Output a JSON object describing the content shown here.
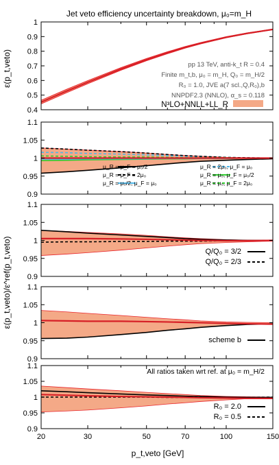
{
  "figure": {
    "title": "Jet veto efficiency uncertainty breakdown, μ₀=m_H",
    "xlabel": "p_t,veto [GeV]",
    "ylabel_top": "ε(p_t,veto)",
    "ylabel_ratio": "ε(p_t,veto)/ε^ref(p_t,veto)",
    "xticks": [
      "20",
      "30",
      "50",
      "70",
      "100",
      "150"
    ]
  },
  "colors": {
    "band_fill": "#f4a987",
    "band_edge": "#e8242a",
    "central": "#d61f26",
    "black": "#000000",
    "cyan": "#4fb7e8",
    "green": "#2ecc2e"
  },
  "chart_data": [
    {
      "type": "line",
      "panel": "efficiency",
      "ylim": [
        0.4,
        1.0
      ],
      "yticks": [
        "0.4",
        "0.5",
        "0.6",
        "0.7",
        "0.8",
        "0.9",
        "1"
      ],
      "annotations": [
        "pp 13 TeV, anti-k_t R = 0.4",
        "Finite m_t,b, μ₀ = m_H, Q₀ = m_H/2",
        "R₀ = 1.0, JVE a(7 scl.,Q,R₀),b",
        "NNPDF2.3 (NNLO), α_s = 0.118"
      ],
      "legend": [
        "N³LO+NNLL+LL_R"
      ],
      "x": [
        20,
        25,
        30,
        40,
        50,
        60,
        70,
        80,
        100,
        120,
        150
      ],
      "series": [
        {
          "name": "N³LO+NNLL+LL_R",
          "central": [
            0.452,
            0.528,
            0.588,
            0.678,
            0.742,
            0.789,
            0.826,
            0.854,
            0.895,
            0.922,
            0.949
          ],
          "lower": [
            0.44,
            0.517,
            0.578,
            0.67,
            0.735,
            0.783,
            0.821,
            0.85,
            0.892,
            0.919,
            0.947
          ],
          "upper": [
            0.464,
            0.54,
            0.599,
            0.687,
            0.75,
            0.796,
            0.832,
            0.859,
            0.899,
            0.925,
            0.951
          ]
        }
      ]
    },
    {
      "type": "line",
      "panel": "scale variations",
      "ylim": [
        0.9,
        1.1
      ],
      "yticks": [
        "0.9",
        "0.95",
        "1",
        "1.05",
        "1.1"
      ],
      "x": [
        20,
        25,
        30,
        40,
        50,
        60,
        70,
        80,
        100,
        120,
        150
      ],
      "band": {
        "lower": [
          0.958,
          0.962,
          0.966,
          0.973,
          0.979,
          0.984,
          0.988,
          0.991,
          0.994,
          0.996,
          0.998
        ],
        "upper": [
          1.028,
          1.025,
          1.022,
          1.018,
          1.014,
          1.01,
          1.007,
          1.005,
          1.002,
          1.001,
          1.0
        ]
      },
      "legend": [
        "μ_R = μ_F = μ₀/2",
        "μ_R = 2μ₀, μ_F = μ₀",
        "μ_R = μ_F = 2μ₀",
        "μ_R = μ₀, μ_F = μ₀/2",
        "μ_R = μ₀/2, μ_F = μ₀",
        "μ_R = μ₀, μ_F = 2μ₀"
      ],
      "series": [
        {
          "name": "μ_R = μ_F = μ₀/2",
          "color": "#000000",
          "dash": "solid",
          "values": [
            0.958,
            0.962,
            0.966,
            0.973,
            0.979,
            0.984,
            0.988,
            0.991,
            0.994,
            0.996,
            0.998
          ]
        },
        {
          "name": "μ_R = 2μ₀, μ_F = μ₀",
          "color": "#4fb7e8",
          "dash": "dashed",
          "values": [
            1.016,
            1.015,
            1.013,
            1.011,
            1.009,
            1.007,
            1.005,
            1.004,
            1.002,
            1.001,
            1.0
          ]
        },
        {
          "name": "μ_R = μ_F = 2μ₀",
          "color": "#000000",
          "dash": "dashed",
          "values": [
            1.028,
            1.025,
            1.022,
            1.018,
            1.014,
            1.01,
            1.007,
            1.005,
            1.002,
            1.001,
            1.0
          ]
        },
        {
          "name": "μ_R = μ₀, μ_F = μ₀/2",
          "color": "#2ecc2e",
          "dash": "solid",
          "values": [
            0.993,
            0.994,
            0.995,
            0.996,
            0.997,
            0.998,
            0.998,
            0.999,
            0.999,
            1.0,
            1.0
          ]
        },
        {
          "name": "μ_R = μ₀/2, μ_F = μ₀",
          "color": "#4fb7e8",
          "dash": "solid",
          "values": [
            0.997,
            0.997,
            0.998,
            0.998,
            0.998,
            0.999,
            0.999,
            0.999,
            0.999,
            1.0,
            1.0
          ]
        },
        {
          "name": "μ_R = μ₀, μ_F = 2μ₀",
          "color": "#2ecc2e",
          "dash": "dashed",
          "values": [
            1.006,
            1.005,
            1.004,
            1.003,
            1.003,
            1.002,
            1.001,
            1.001,
            1.001,
            1.0,
            1.0
          ]
        },
        {
          "name": "reference",
          "color": "#d61f26",
          "dash": "solid",
          "values": [
            1.0,
            1.0,
            1.0,
            1.0,
            1.0,
            1.0,
            1.0,
            1.0,
            1.0,
            1.0,
            1.0
          ]
        }
      ]
    },
    {
      "type": "line",
      "panel": "Q variation",
      "ylim": [
        0.9,
        1.1
      ],
      "yticks": [
        "0.9",
        "0.95",
        "1",
        "1.05",
        "1.1"
      ],
      "x": [
        20,
        25,
        30,
        40,
        50,
        60,
        70,
        80,
        100,
        120,
        150
      ],
      "band": {
        "lower": [
          0.958,
          0.962,
          0.966,
          0.973,
          0.979,
          0.984,
          0.988,
          0.991,
          0.994,
          0.996,
          0.998
        ],
        "upper": [
          1.028,
          1.025,
          1.022,
          1.018,
          1.014,
          1.01,
          1.007,
          1.005,
          1.002,
          1.001,
          1.0
        ]
      },
      "legend": [
        "Q/Q₀ = 3/2",
        "Q/Q₀ = 2/3"
      ],
      "series": [
        {
          "name": "Q/Q₀ = 3/2",
          "color": "#000000",
          "dash": "solid",
          "values": [
            1.028,
            1.024,
            1.02,
            1.015,
            1.011,
            1.008,
            1.005,
            1.003,
            1.001,
            1.0,
            1.0
          ]
        },
        {
          "name": "Q/Q₀ = 2/3",
          "color": "#000000",
          "dash": "dashed",
          "values": [
            0.995,
            0.996,
            0.996,
            0.997,
            0.997,
            0.998,
            0.998,
            0.998,
            0.999,
            0.999,
            1.0
          ]
        },
        {
          "name": "reference",
          "color": "#d61f26",
          "dash": "solid",
          "values": [
            1.005,
            1.005,
            1.005,
            1.004,
            1.003,
            1.002,
            1.001,
            1.0,
            0.999,
            0.999,
            1.0
          ]
        }
      ]
    },
    {
      "type": "line",
      "panel": "scheme",
      "ylim": [
        0.9,
        1.1
      ],
      "yticks": [
        "0.9",
        "0.95",
        "1",
        "1.05",
        "1.1"
      ],
      "x": [
        20,
        25,
        30,
        40,
        50,
        60,
        70,
        80,
        100,
        120,
        150
      ],
      "band": {
        "lower": [
          0.956,
          0.957,
          0.96,
          0.967,
          0.973,
          0.979,
          0.983,
          0.987,
          0.992,
          0.995,
          0.997
        ],
        "upper": [
          1.034,
          1.03,
          1.026,
          1.02,
          1.015,
          1.011,
          1.008,
          1.005,
          1.002,
          1.001,
          1.0
        ]
      },
      "legend": [
        "scheme b"
      ],
      "series": [
        {
          "name": "scheme b",
          "color": "#000000",
          "dash": "solid",
          "values": [
            0.956,
            0.957,
            0.96,
            0.967,
            0.973,
            0.979,
            0.983,
            0.987,
            0.992,
            0.995,
            0.997
          ]
        },
        {
          "name": "reference",
          "color": "#d61f26",
          "dash": "solid",
          "values": [
            1.006,
            1.005,
            1.004,
            1.004,
            1.003,
            1.002,
            1.001,
            1.0,
            0.998,
            0.997,
            0.996
          ]
        }
      ]
    },
    {
      "type": "line",
      "panel": "jet radius",
      "ylim": [
        0.9,
        1.1
      ],
      "yticks": [
        "0.9",
        "0.95",
        "1",
        "1.05",
        "1.1"
      ],
      "annotation": "All ratios taken wrt ref. at μ₀ = m_H/2",
      "x": [
        20,
        25,
        30,
        40,
        50,
        60,
        70,
        80,
        100,
        120,
        150
      ],
      "band": {
        "lower": [
          0.953,
          0.956,
          0.959,
          0.966,
          0.972,
          0.978,
          0.982,
          0.986,
          0.991,
          0.995,
          0.997
        ],
        "upper": [
          1.035,
          1.03,
          1.026,
          1.02,
          1.015,
          1.011,
          1.008,
          1.005,
          1.002,
          1.001,
          1.0
        ]
      },
      "legend": [
        "R₀ = 2.0",
        "R₀ = 0.5"
      ],
      "series": [
        {
          "name": "R₀ = 2.0",
          "color": "#000000",
          "dash": "solid",
          "values": [
            1.02,
            1.017,
            1.014,
            1.01,
            1.007,
            1.005,
            1.003,
            1.002,
            1.0,
            0.999,
            0.999
          ]
        },
        {
          "name": "R₀ = 0.5",
          "color": "#000000",
          "dash": "dashed",
          "values": [
            1.0,
            1.0,
            1.0,
            1.0,
            1.0,
            0.999,
            0.999,
            0.999,
            0.999,
            0.999,
            1.0
          ]
        },
        {
          "name": "reference",
          "color": "#d61f26",
          "dash": "solid",
          "values": [
            1.008,
            1.006,
            1.004,
            1.002,
            1.001,
            1.0,
            0.999,
            0.998,
            0.997,
            0.996,
            0.996
          ]
        }
      ]
    }
  ]
}
